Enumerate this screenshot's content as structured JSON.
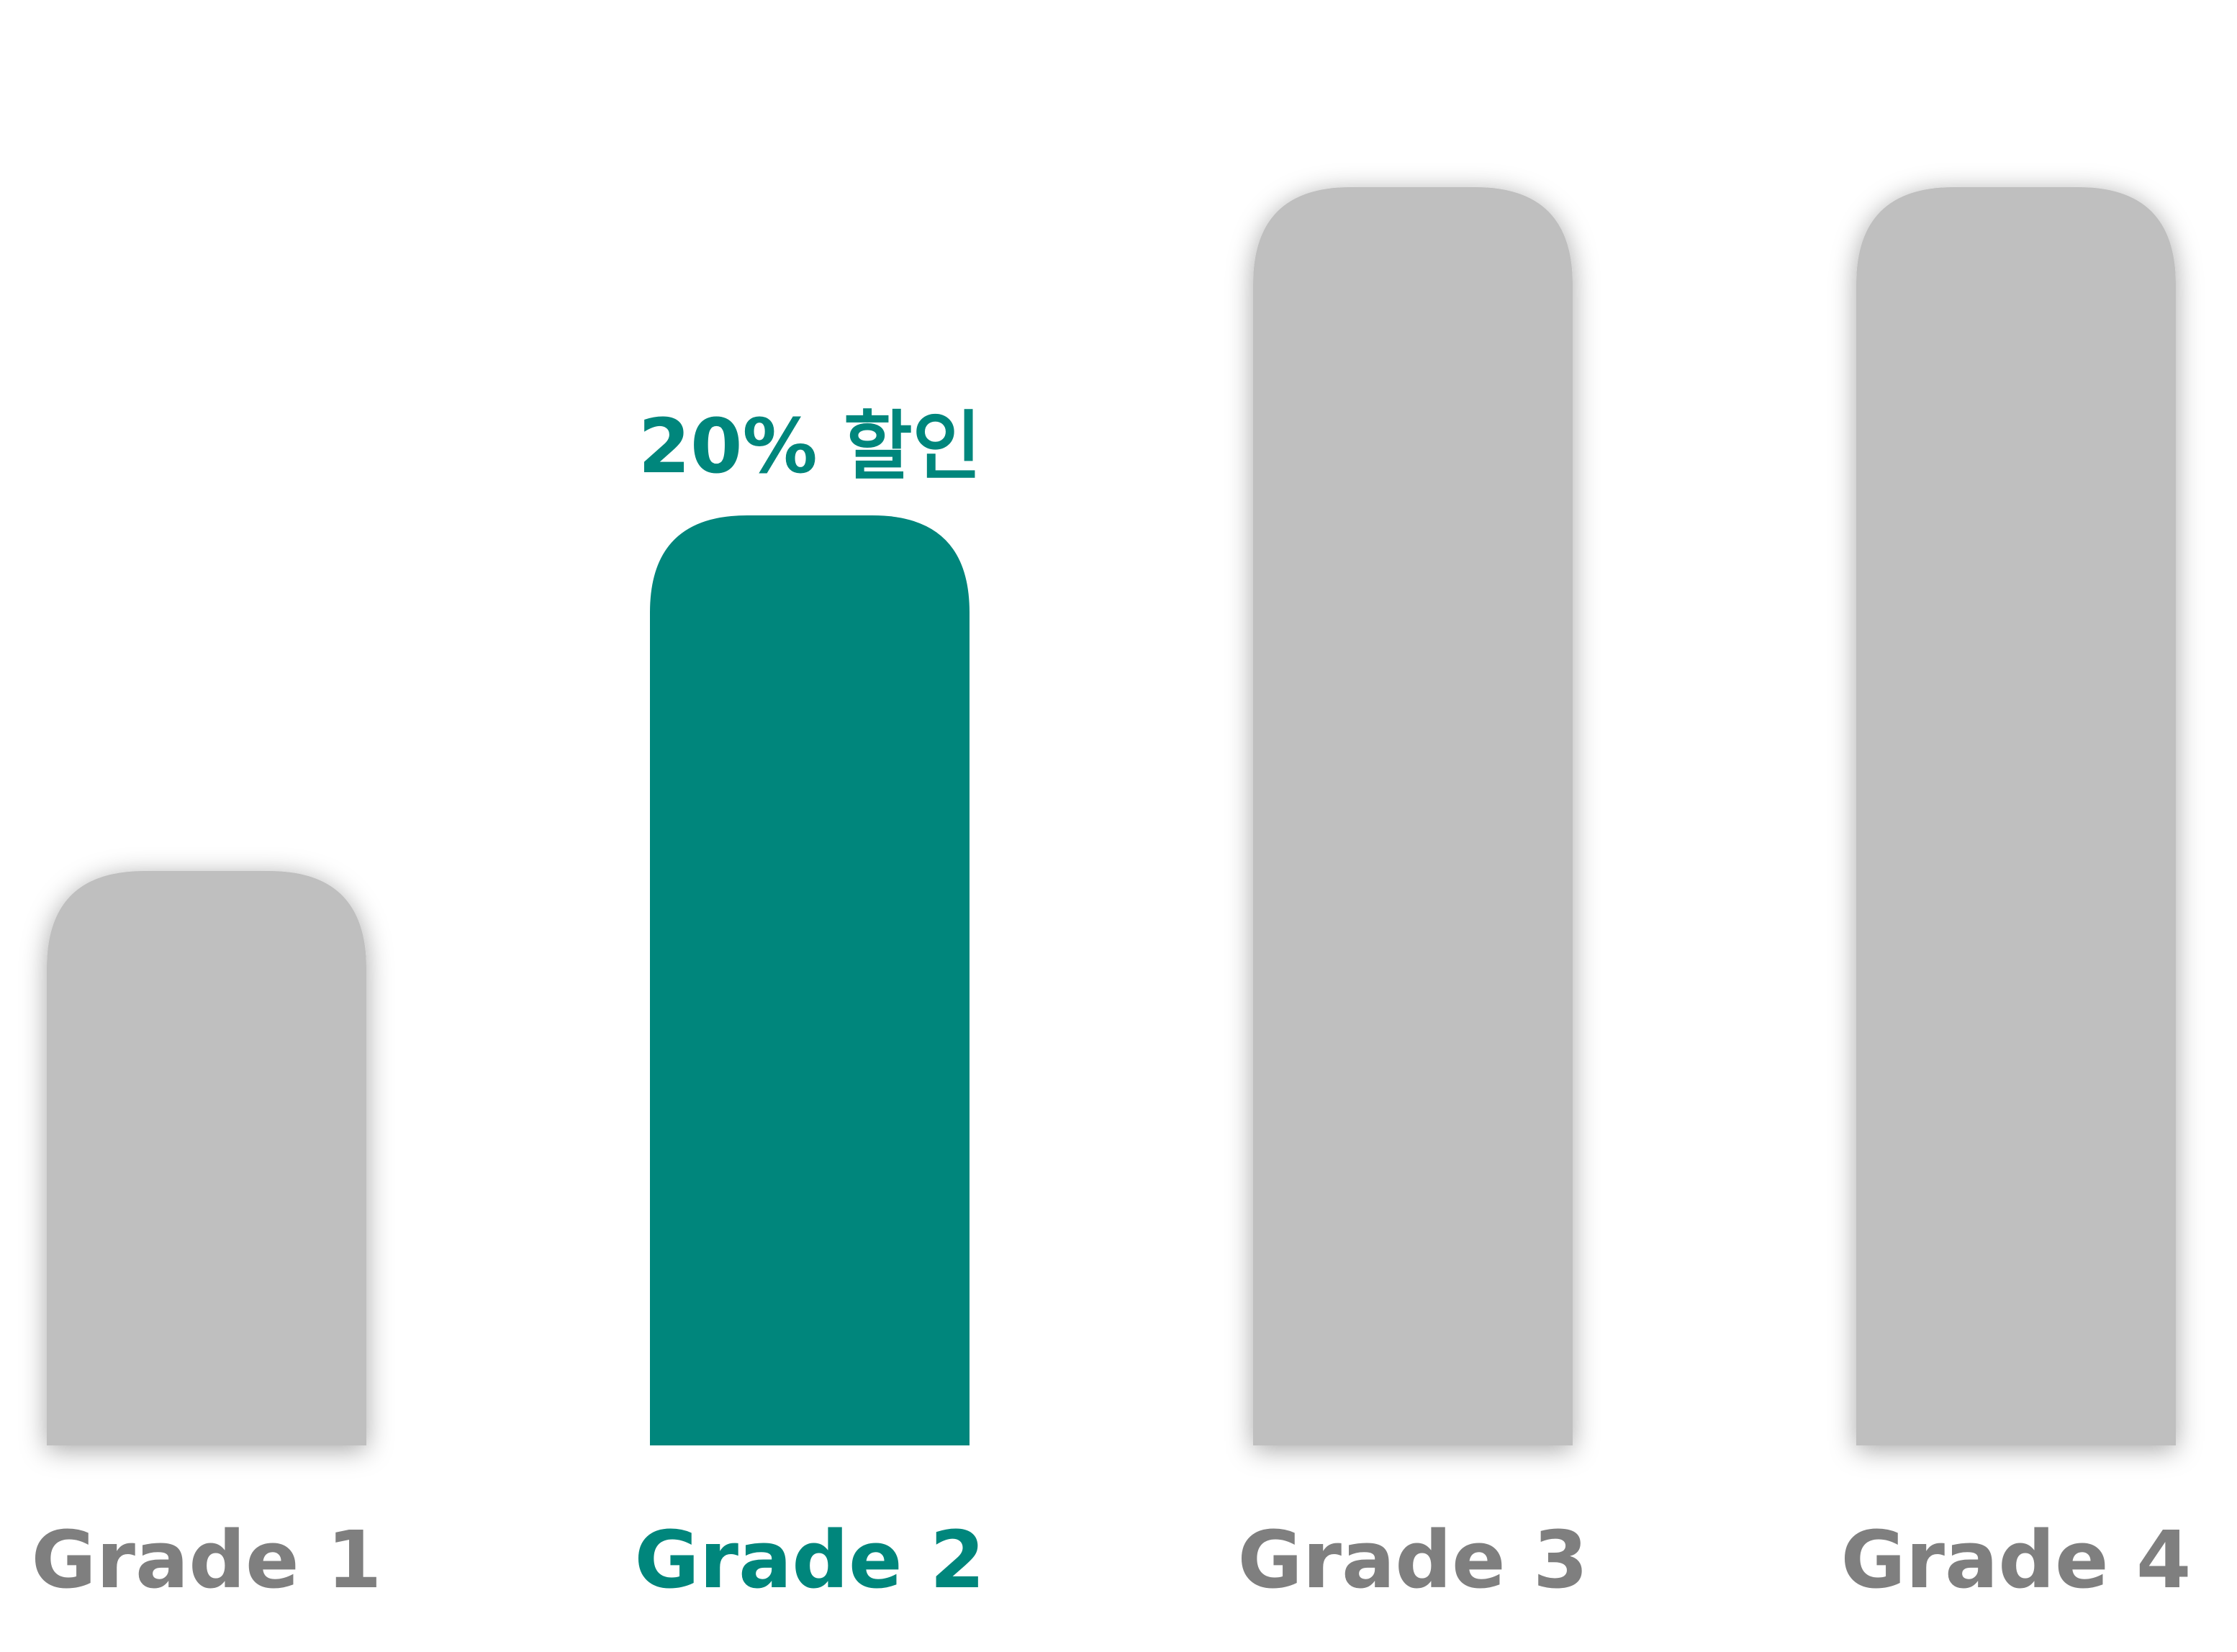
{
  "chart_data": {
    "type": "bar",
    "categories": [
      "Grade 1",
      "Grade 2",
      "Grade 3",
      "Grade 4"
    ],
    "values": [
      42,
      68,
      92,
      92
    ],
    "highlight_index": 1,
    "data_labels": [
      "",
      "20% 할인",
      "",
      ""
    ],
    "ylim": [
      0,
      100
    ],
    "grid": false,
    "legend": "none",
    "colors": {
      "default": "#bfbfbf",
      "highlight": "#00867c",
      "label_default": "#7f7f7f",
      "label_highlight": "#00867c"
    }
  }
}
